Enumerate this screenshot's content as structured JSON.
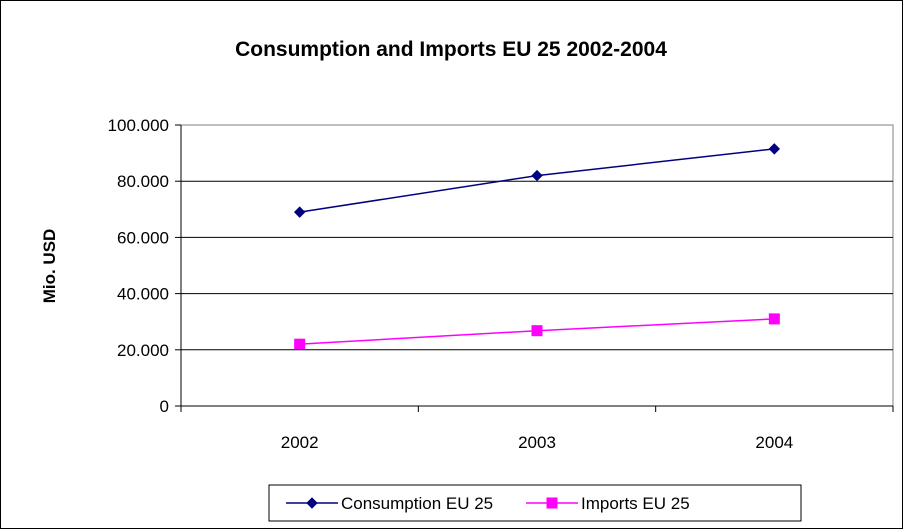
{
  "chart_data": {
    "type": "line",
    "title": "Consumption and Imports EU 25 2002-2004",
    "xlabel": "",
    "ylabel": "Mio. USD",
    "categories": [
      "2002",
      "2003",
      "2004"
    ],
    "ylim": [
      0,
      100000
    ],
    "yticks": [
      0,
      20000,
      40000,
      60000,
      80000,
      100000
    ],
    "ytick_labels": [
      "0",
      "20.000",
      "40.000",
      "60.000",
      "80.000",
      "100.000"
    ],
    "grid": true,
    "legend_position": "bottom",
    "series": [
      {
        "name": "Consumption EU 25",
        "values": [
          69000,
          82000,
          91500
        ],
        "color": "#000080",
        "marker": "diamond"
      },
      {
        "name": "Imports EU 25",
        "values": [
          22000,
          26800,
          31000
        ],
        "color": "#FF00FF",
        "marker": "square"
      }
    ]
  }
}
